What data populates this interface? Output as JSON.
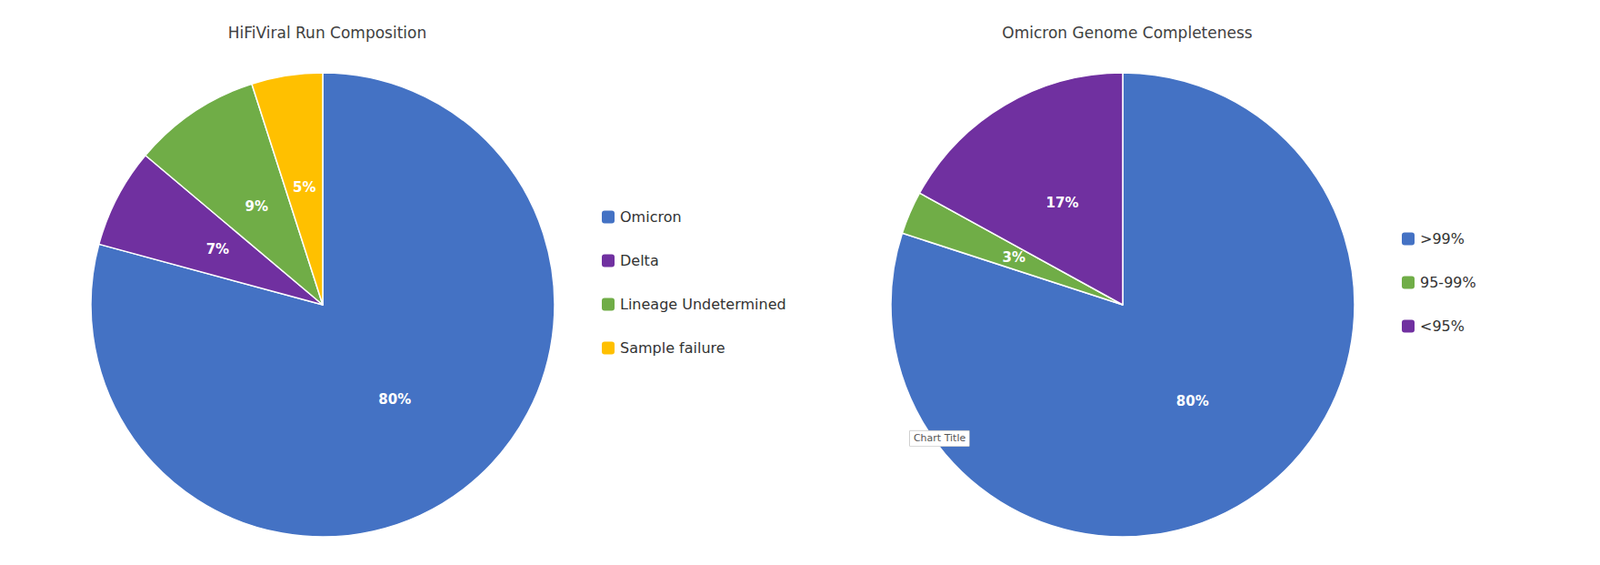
{
  "chart_data": [
    {
      "type": "pie",
      "title": "HiFiViral Run Composition",
      "categories": [
        "Omicron",
        "Delta",
        "Lineage Undetermined",
        "Sample failure"
      ],
      "values": [
        80,
        7,
        9,
        5
      ],
      "value_labels": [
        "80%",
        "7%",
        "9%",
        "5%"
      ],
      "colors": [
        "#4472C4",
        "#7030A0",
        "#70AD47",
        "#FFC000"
      ],
      "data_labels": true,
      "legend": "right"
    },
    {
      "type": "pie",
      "title": "Omicron Genome Completeness",
      "categories": [
        ">99%",
        "95-99%",
        "<95%"
      ],
      "values": [
        80,
        3,
        17
      ],
      "value_labels": [
        "80%",
        "3%",
        "17%"
      ],
      "colors": [
        "#4472C4",
        "#70AD47",
        "#7030A0"
      ],
      "data_labels": true,
      "legend": "right",
      "annotations": [
        "Chart Title"
      ]
    }
  ]
}
